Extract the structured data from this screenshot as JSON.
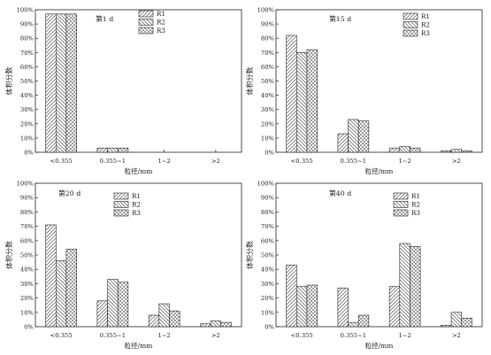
{
  "legend_names": [
    "R1",
    "R2",
    "R3"
  ],
  "y_ticks": [
    "0%",
    "10%",
    "20%",
    "30%",
    "40%",
    "50%",
    "60%",
    "70%",
    "80%",
    "90%",
    "100%"
  ],
  "chart_data": [
    {
      "type": "bar",
      "title": "第1 d",
      "ylabel": "体积分数",
      "xlabel": "粒径/mm",
      "categories": [
        "<0.355",
        "0.355~1",
        "1~2",
        ">2"
      ],
      "ylim": [
        0,
        100
      ],
      "series": [
        {
          "name": "R1",
          "values": [
            97,
            3,
            0,
            0
          ]
        },
        {
          "name": "R2",
          "values": [
            97,
            3,
            0,
            0
          ]
        },
        {
          "name": "R3",
          "values": [
            97,
            3,
            0,
            0
          ]
        }
      ]
    },
    {
      "type": "bar",
      "title": "第15 d",
      "ylabel": "体积分数",
      "xlabel": "粒径/mm",
      "categories": [
        "<0.355",
        "0.355~1",
        "1~2",
        ">2"
      ],
      "ylim": [
        0,
        100
      ],
      "series": [
        {
          "name": "R1",
          "values": [
            82,
            13,
            3,
            1
          ]
        },
        {
          "name": "R2",
          "values": [
            70,
            23,
            4,
            2
          ]
        },
        {
          "name": "R3",
          "values": [
            72,
            22,
            3,
            1
          ]
        }
      ]
    },
    {
      "type": "bar",
      "title": "第20 d",
      "ylabel": "体积分数",
      "xlabel": "粒径/mm",
      "categories": [
        "<0.355",
        "0.355~1",
        "1~2",
        ">2"
      ],
      "ylim": [
        0,
        100
      ],
      "series": [
        {
          "name": "R1",
          "values": [
            71,
            18,
            8,
            2
          ]
        },
        {
          "name": "R2",
          "values": [
            46,
            33,
            16,
            4
          ]
        },
        {
          "name": "R3",
          "values": [
            54,
            31,
            11,
            3
          ]
        }
      ]
    },
    {
      "type": "bar",
      "title": "第40 d",
      "ylabel": "体积分数",
      "xlabel": "粒径/mm",
      "categories": [
        "<0.355",
        "0.355~1",
        "1~2",
        ">2"
      ],
      "ylim": [
        0,
        100
      ],
      "series": [
        {
          "name": "R1",
          "values": [
            43,
            27,
            28,
            1
          ]
        },
        {
          "name": "R2",
          "values": [
            28,
            3,
            58,
            10
          ]
        },
        {
          "name": "R3",
          "values": [
            29,
            8,
            56,
            6
          ]
        }
      ]
    }
  ]
}
